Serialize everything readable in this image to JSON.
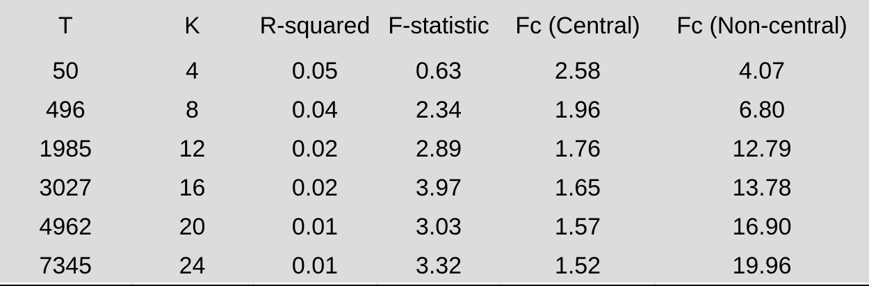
{
  "table": {
    "headers": [
      "T",
      "K",
      "R-squared",
      "F-statistic",
      "Fc (Central)",
      "Fc (Non-central)"
    ],
    "rows": [
      [
        "50",
        "4",
        "0.05",
        "0.63",
        "2.58",
        "4.07"
      ],
      [
        "496",
        "8",
        "0.04",
        "2.34",
        "1.96",
        "6.80"
      ],
      [
        "1985",
        "12",
        "0.02",
        "2.89",
        "1.76",
        "12.79"
      ],
      [
        "3027",
        "16",
        "0.02",
        "3.97",
        "1.65",
        "13.78"
      ],
      [
        "4962",
        "20",
        "0.01",
        "3.03",
        "1.57",
        "16.90"
      ],
      [
        "7345",
        "24",
        "0.01",
        "3.32",
        "1.52",
        "19.96"
      ]
    ]
  }
}
